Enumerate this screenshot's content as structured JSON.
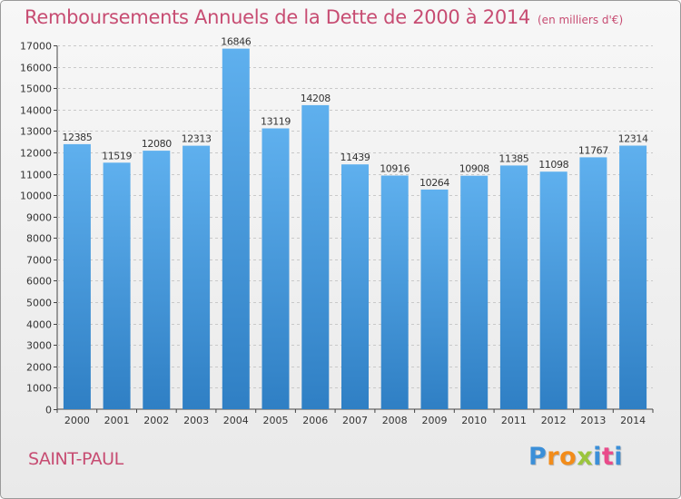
{
  "chart_data": {
    "type": "bar",
    "title": "Remboursements Annuels de la Dette de 2000 à 2014",
    "subtitle": "(en milliers d'€)",
    "categories": [
      "2000",
      "2001",
      "2002",
      "2003",
      "2004",
      "2005",
      "2006",
      "2007",
      "2008",
      "2009",
      "2010",
      "2011",
      "2012",
      "2013",
      "2014"
    ],
    "values": [
      12385,
      11519,
      12080,
      12313,
      16846,
      13119,
      14208,
      11439,
      10916,
      10264,
      10908,
      11385,
      11098,
      11767,
      12314
    ],
    "ylim": [
      0,
      17000
    ],
    "yticks": [
      0,
      1000,
      2000,
      3000,
      4000,
      5000,
      6000,
      7000,
      8000,
      9000,
      10000,
      11000,
      12000,
      13000,
      14000,
      15000,
      16000,
      17000
    ],
    "grid": true,
    "bar_color": "#4d9de0"
  },
  "footer": {
    "location": "SAINT-PAUL",
    "brand_letters": [
      "P",
      "r",
      "o",
      "x",
      "i",
      "t",
      "i"
    ],
    "brand_colors": [
      "#3b8fd8",
      "#f28c1a",
      "#f28c1a",
      "#9bc53d",
      "#3b8fd8",
      "#e94b8a",
      "#3b8fd8"
    ]
  }
}
